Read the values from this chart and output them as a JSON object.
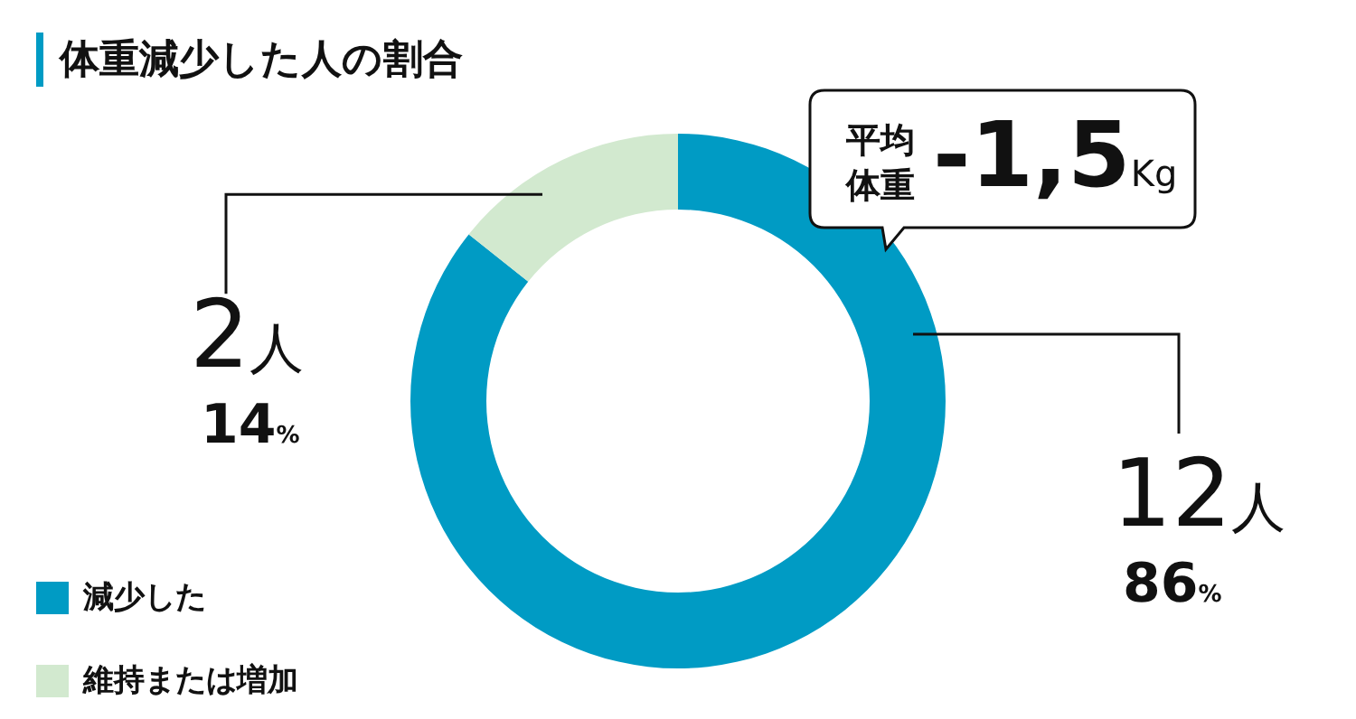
{
  "chart_data": {
    "type": "donut",
    "title": "体重減少した人の割合",
    "categories": [
      "減少した",
      "維持または増加"
    ],
    "values": [
      12,
      2
    ],
    "colors": [
      "#009bc4",
      "#d2e9cf"
    ],
    "value_labels": [
      "12人",
      "2人"
    ],
    "legend": "bottom left",
    "annotations": [
      "平均体重 -1,5Kg",
      "86%",
      "14%"
    ]
  }
}
